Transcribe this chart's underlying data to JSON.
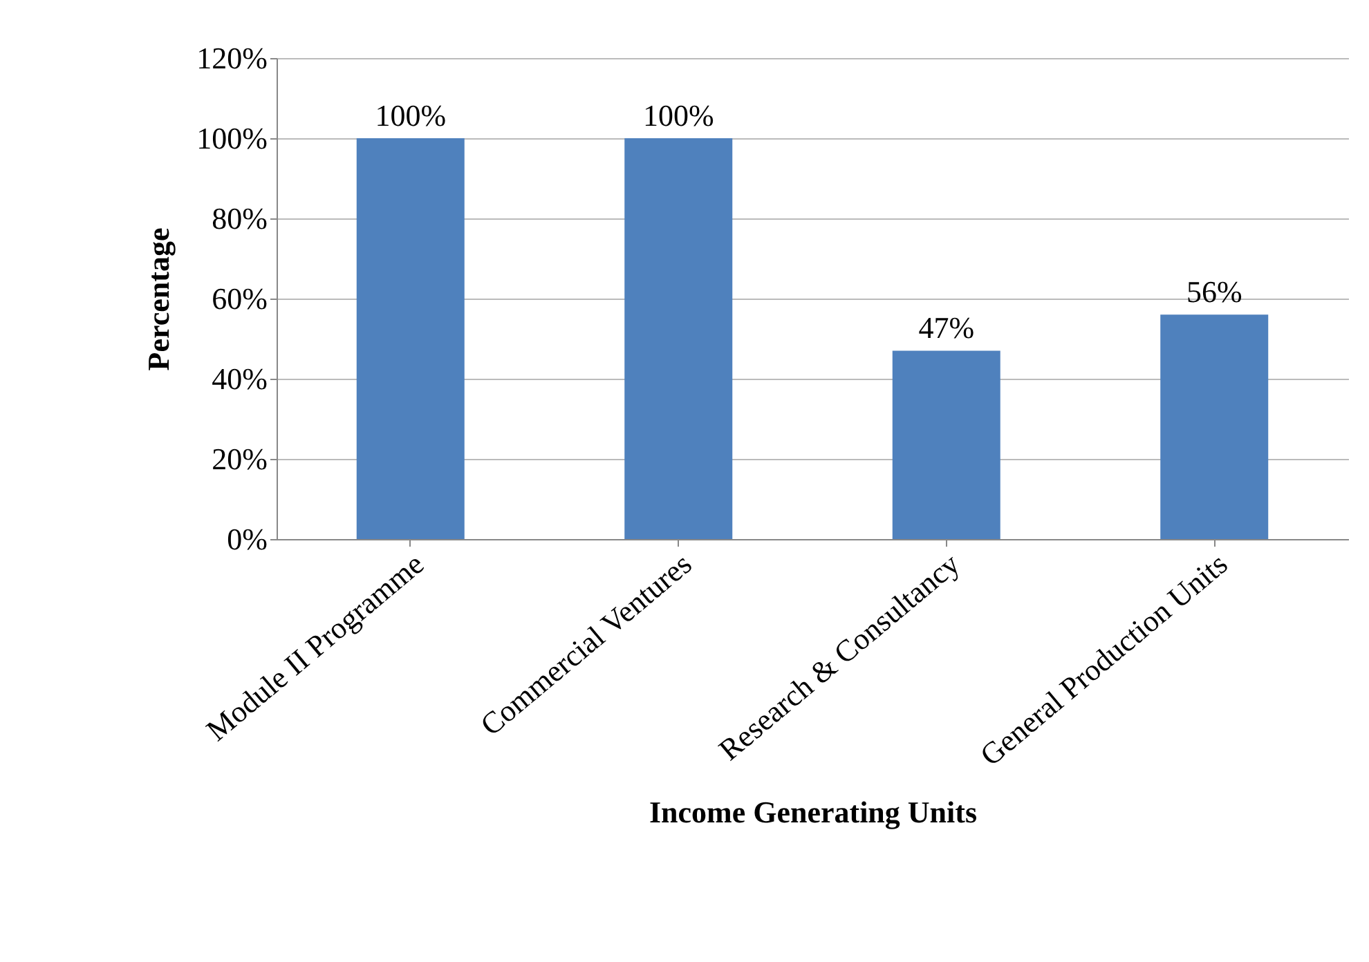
{
  "chart_data": {
    "type": "bar",
    "xlabel": "Income Generating Units",
    "ylabel": "Percentage",
    "categories": [
      "Module II Programme",
      "Commercial Ventures",
      "Research & Consultancy",
      "General Production Units"
    ],
    "values": [
      100,
      100,
      47,
      56
    ],
    "color": "#4f81bd",
    "value_labels": [
      "100%",
      "100%",
      "47%",
      "56%"
    ],
    "ylim": [
      0,
      120
    ],
    "yticks": [
      {
        "value": 0,
        "label": "0%"
      },
      {
        "value": 20,
        "label": "20%"
      },
      {
        "value": 40,
        "label": "40%"
      },
      {
        "value": 60,
        "label": "60%"
      },
      {
        "value": 80,
        "label": "80%"
      },
      {
        "value": 100,
        "label": "100%"
      },
      {
        "value": 120,
        "label": "120%"
      }
    ],
    "grid": "y"
  }
}
